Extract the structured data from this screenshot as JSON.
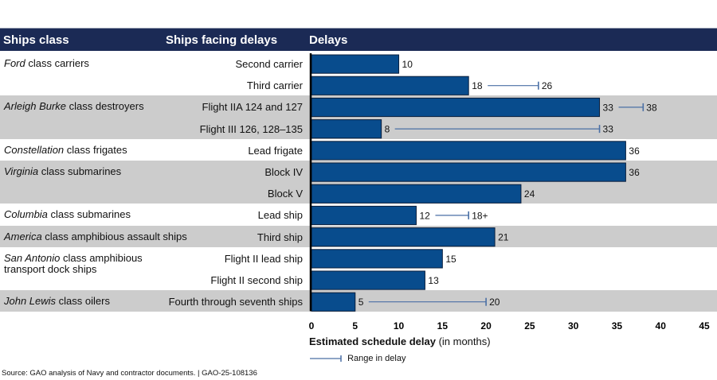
{
  "header": {
    "col1": "Ships class",
    "col2": "Ships facing delays",
    "col3": "Delays"
  },
  "colors": {
    "header_bg": "#1b2a55",
    "bar": "#084c8d",
    "band_gray": "#cccccc",
    "range_line": "#4a6fa5"
  },
  "groups": [
    {
      "class_italic": "Ford",
      "class_rest": " class carriers",
      "shaded": false,
      "rows": [
        0,
        1
      ]
    },
    {
      "class_italic": "Arleigh Burke",
      "class_rest": " class destroyers",
      "shaded": true,
      "rows": [
        2,
        3
      ]
    },
    {
      "class_italic": "Constellation",
      "class_rest": " class frigates",
      "shaded": false,
      "rows": [
        4
      ]
    },
    {
      "class_italic": "Virginia",
      "class_rest": " class submarines",
      "shaded": true,
      "rows": [
        5,
        6
      ]
    },
    {
      "class_italic": "Columbia",
      "class_rest": " class submarines",
      "shaded": false,
      "rows": [
        7
      ]
    },
    {
      "class_italic": "America",
      "class_rest": " class amphibious assault ships",
      "shaded": true,
      "rows": [
        8
      ]
    },
    {
      "class_italic": "San Antonio",
      "class_rest": " class amphibious transport dock ships",
      "shaded": false,
      "rows": [
        9,
        10
      ]
    },
    {
      "class_italic": "John Lewis",
      "class_rest": " class oilers",
      "shaded": true,
      "rows": [
        11
      ]
    }
  ],
  "chart_data": {
    "type": "bar",
    "orientation": "horizontal",
    "categories": [
      "Second carrier",
      "Third carrier",
      "Flight IIA 124 and 127",
      "Flight III 126, 128–135",
      "Lead frigate",
      "Block IV",
      "Block V",
      "Lead ship",
      "Third ship",
      "Flight II lead ship",
      "Flight II second ship",
      "Fourth through seventh ships"
    ],
    "values": [
      10,
      18,
      33,
      8,
      36,
      36,
      24,
      12,
      21,
      15,
      13,
      5
    ],
    "value_labels": [
      "10",
      "18",
      "33",
      "8",
      "36",
      "36",
      "24",
      "12",
      "21",
      "15",
      "13",
      "5"
    ],
    "range_max": [
      null,
      26,
      38,
      33,
      null,
      null,
      null,
      18,
      null,
      null,
      null,
      20
    ],
    "range_labels": [
      null,
      "26",
      "38",
      "33",
      null,
      null,
      null,
      "18+",
      null,
      null,
      null,
      "20"
    ],
    "xlabel_bold": "Estimated schedule delay",
    "xlabel_rest": " (in months)",
    "xlim": [
      0,
      45
    ],
    "xticks": [
      0,
      5,
      10,
      15,
      20,
      25,
      30,
      35,
      40,
      45
    ],
    "legend": [
      {
        "type": "range-line",
        "label": "Range in delay"
      }
    ],
    "legend_position": "bottom-left"
  },
  "source": "Source: GAO analysis of Navy and contractor documents.  |  GAO-25-108136"
}
